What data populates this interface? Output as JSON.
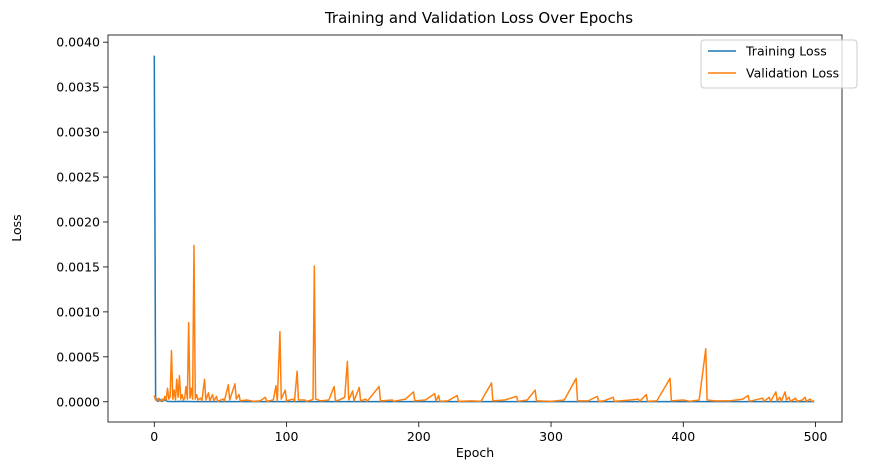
{
  "chart_data": {
    "type": "line",
    "title": "Training and Validation Loss Over Epochs",
    "xlabel": "Epoch",
    "ylabel": "Loss",
    "xlim": [
      -35,
      520
    ],
    "ylim": [
      -0.000225,
      0.00408
    ],
    "xticks": [
      0,
      100,
      200,
      300,
      400,
      500
    ],
    "xtick_labels": [
      "0",
      "100",
      "200",
      "300",
      "400",
      "500"
    ],
    "yticks": [
      0,
      0.0005,
      0.001,
      0.0015,
      0.002,
      0.0025,
      0.003,
      0.0035,
      0.004
    ],
    "ytick_labels": [
      "0.0000",
      "0.0005",
      "0.0010",
      "0.0015",
      "0.0020",
      "0.0025",
      "0.0030",
      "0.0035",
      "0.0040"
    ],
    "grid": false,
    "legend_position": "top-right",
    "series": [
      {
        "name": "Training Loss",
        "color": "#1f77b4",
        "points": [
          [
            0,
            0.00385
          ],
          [
            1,
            4e-05
          ],
          [
            2,
            1e-05
          ],
          [
            3,
            5e-06
          ],
          [
            4,
            3e-05
          ],
          [
            5,
            1e-05
          ],
          [
            6,
            5e-06
          ],
          [
            8,
            2e-05
          ],
          [
            10,
            4e-06
          ],
          [
            15,
            2e-06
          ],
          [
            20,
            4e-06
          ],
          [
            30,
            2e-06
          ],
          [
            50,
            1e-06
          ],
          [
            100,
            1e-06
          ],
          [
            150,
            1e-06
          ],
          [
            200,
            1e-06
          ],
          [
            250,
            1e-06
          ],
          [
            300,
            1e-06
          ],
          [
            350,
            1e-06
          ],
          [
            400,
            1e-06
          ],
          [
            450,
            1e-06
          ],
          [
            499,
            1e-06
          ]
        ]
      },
      {
        "name": "Validation Loss",
        "color": "#ff7f0e",
        "points": [
          [
            0,
            7e-05
          ],
          [
            1,
            2e-05
          ],
          [
            2,
            1e-05
          ],
          [
            3,
            4e-05
          ],
          [
            4,
            1e-05
          ],
          [
            5,
            5e-06
          ],
          [
            6,
            3e-05
          ],
          [
            7,
            1e-05
          ],
          [
            8,
            6e-05
          ],
          [
            9,
            2e-05
          ],
          [
            10,
            0.00015
          ],
          [
            11,
            3e-05
          ],
          [
            12,
            6e-05
          ],
          [
            13,
            0.00057
          ],
          [
            14,
            3e-05
          ],
          [
            15,
            0.00013
          ],
          [
            16,
            2e-05
          ],
          [
            17,
            0.00025
          ],
          [
            18,
            5e-05
          ],
          [
            19,
            0.00029
          ],
          [
            20,
            3e-05
          ],
          [
            21,
            8e-05
          ],
          [
            22,
            2e-05
          ],
          [
            23,
            4e-05
          ],
          [
            24,
            0.00017
          ],
          [
            25,
            3e-05
          ],
          [
            26,
            0.00088
          ],
          [
            27,
            4e-05
          ],
          [
            28,
            0.00015
          ],
          [
            29,
            3e-05
          ],
          [
            30,
            0.00174
          ],
          [
            31,
            3e-05
          ],
          [
            32,
            8e-05
          ],
          [
            33,
            2e-05
          ],
          [
            35,
            4e-05
          ],
          [
            36,
            1e-05
          ],
          [
            38,
            0.00025
          ],
          [
            39,
            2e-05
          ],
          [
            41,
            0.0001
          ],
          [
            42,
            1e-05
          ],
          [
            44,
            8e-05
          ],
          [
            45,
            1e-05
          ],
          [
            47,
            6e-05
          ],
          [
            48,
            5e-06
          ],
          [
            52,
            3e-05
          ],
          [
            53,
            1e-05
          ],
          [
            56,
            0.00019
          ],
          [
            57,
            2e-05
          ],
          [
            61,
            0.0002
          ],
          [
            62,
            3e-05
          ],
          [
            64,
            8e-05
          ],
          [
            65,
            1e-05
          ],
          [
            70,
            2e-05
          ],
          [
            75,
            5e-06
          ],
          [
            80,
            1e-05
          ],
          [
            84,
            5e-05
          ],
          [
            85,
            5e-06
          ],
          [
            90,
            2e-05
          ],
          [
            92,
            0.00018
          ],
          [
            93,
            1e-05
          ],
          [
            95,
            0.00078
          ],
          [
            96,
            3e-05
          ],
          [
            99,
            0.00013
          ],
          [
            100,
            1e-05
          ],
          [
            105,
            3e-05
          ],
          [
            106,
            5e-06
          ],
          [
            108,
            0.00034
          ],
          [
            109,
            2e-05
          ],
          [
            114,
            2e-05
          ],
          [
            115,
            5e-06
          ],
          [
            119,
            2e-05
          ],
          [
            120,
            3e-05
          ],
          [
            121,
            0.00151
          ],
          [
            122,
            3e-05
          ],
          [
            126,
            1e-05
          ],
          [
            132,
            2e-05
          ],
          [
            136,
            0.00017
          ],
          [
            137,
            1e-05
          ],
          [
            140,
            2e-05
          ],
          [
            144,
            5e-05
          ],
          [
            146,
            0.00045
          ],
          [
            147,
            2e-05
          ],
          [
            150,
            0.00012
          ],
          [
            151,
            1e-05
          ],
          [
            155,
            0.00016
          ],
          [
            156,
            1e-05
          ],
          [
            160,
            3e-05
          ],
          [
            161,
            5e-06
          ],
          [
            170,
            0.00017
          ],
          [
            171,
            1e-05
          ],
          [
            180,
            2e-05
          ],
          [
            181,
            5e-06
          ],
          [
            190,
            3e-05
          ],
          [
            196,
            0.00011
          ],
          [
            197,
            1e-05
          ],
          [
            205,
            2e-05
          ],
          [
            212,
            9e-05
          ],
          [
            213,
            1e-05
          ],
          [
            215,
            7e-05
          ],
          [
            216,
            5e-06
          ],
          [
            222,
            1e-05
          ],
          [
            229,
            7e-05
          ],
          [
            230,
            5e-06
          ],
          [
            240,
            1e-05
          ],
          [
            247,
            5e-06
          ],
          [
            255,
            0.00021
          ],
          [
            256,
            1e-05
          ],
          [
            265,
            2e-05
          ],
          [
            274,
            6e-05
          ],
          [
            275,
            5e-06
          ],
          [
            282,
            2e-05
          ],
          [
            288,
            0.00013
          ],
          [
            289,
            1e-05
          ],
          [
            300,
            5e-06
          ],
          [
            310,
            2e-05
          ],
          [
            319,
            0.00026
          ],
          [
            320,
            1e-05
          ],
          [
            328,
            1e-05
          ],
          [
            335,
            6e-05
          ],
          [
            336,
            5e-06
          ],
          [
            340,
            1e-05
          ],
          [
            347,
            5e-05
          ],
          [
            348,
            5e-06
          ],
          [
            360,
            2e-05
          ],
          [
            366,
            3e-05
          ],
          [
            367,
            5e-06
          ],
          [
            372,
            8e-05
          ],
          [
            373,
            5e-06
          ],
          [
            380,
            1e-05
          ],
          [
            390,
            0.00026
          ],
          [
            391,
            1e-05
          ],
          [
            400,
            2e-05
          ],
          [
            405,
            5e-06
          ],
          [
            412,
            2e-05
          ],
          [
            417,
            0.00059
          ],
          [
            418,
            2e-05
          ],
          [
            424,
            1e-05
          ],
          [
            435,
            1e-05
          ],
          [
            445,
            3e-05
          ],
          [
            449,
            7e-05
          ],
          [
            450,
            5e-06
          ],
          [
            460,
            4e-05
          ],
          [
            461,
            5e-06
          ],
          [
            465,
            5e-05
          ],
          [
            466,
            5e-06
          ],
          [
            470,
            0.00011
          ],
          [
            471,
            1e-05
          ],
          [
            473,
            5e-05
          ],
          [
            474,
            5e-06
          ],
          [
            477,
            0.00011
          ],
          [
            478,
            2e-05
          ],
          [
            480,
            5e-05
          ],
          [
            481,
            5e-06
          ],
          [
            485,
            4e-05
          ],
          [
            486,
            5e-06
          ],
          [
            490,
            2e-05
          ],
          [
            492,
            5e-05
          ],
          [
            493,
            5e-06
          ],
          [
            496,
            3e-05
          ],
          [
            497,
            5e-06
          ],
          [
            499,
            1e-05
          ]
        ]
      }
    ]
  }
}
